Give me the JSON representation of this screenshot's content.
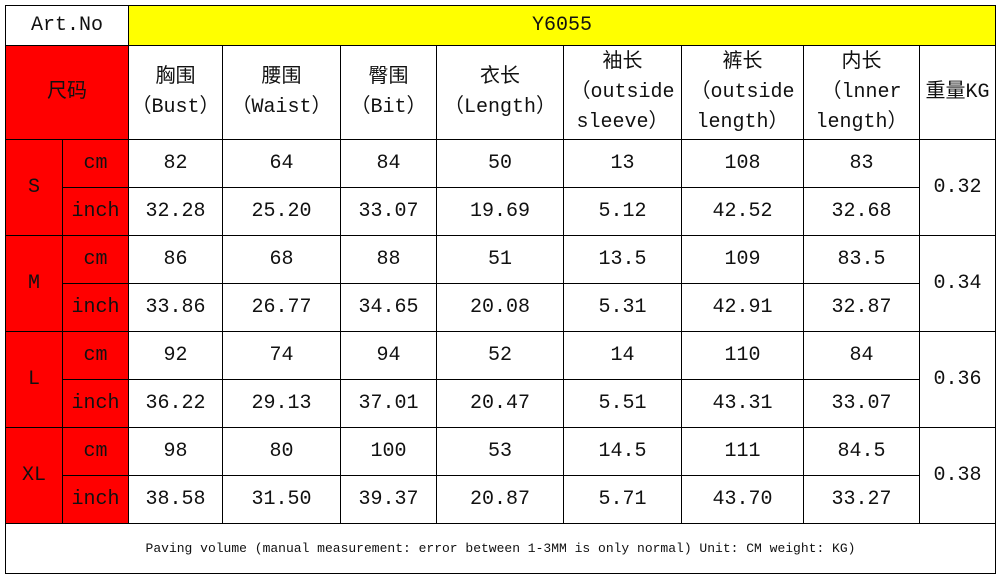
{
  "art_no": {
    "label": "Art.No",
    "value": "Y6055"
  },
  "header": {
    "size_label": "尺码",
    "columns": [
      [
        "胸围",
        "（Bust）"
      ],
      [
        "腰围",
        "（Waist）"
      ],
      [
        "臀围",
        "（Bit）"
      ],
      [
        "衣长",
        "（Length）"
      ],
      [
        "袖长",
        "（outside",
        "sleeve）"
      ],
      [
        "裤长",
        "（outside",
        "length）"
      ],
      [
        "内长",
        "（lnner",
        "length）"
      ]
    ],
    "weight_label": "重量KG"
  },
  "sizes": [
    {
      "size": "S",
      "weight": "0.32",
      "rows": [
        {
          "unit": "cm",
          "values": [
            "82",
            "64",
            "84",
            "50",
            "13",
            "108",
            "83"
          ]
        },
        {
          "unit": "inch",
          "values": [
            "32.28",
            "25.20",
            "33.07",
            "19.69",
            "5.12",
            "42.52",
            "32.68"
          ]
        }
      ]
    },
    {
      "size": "M",
      "weight": "0.34",
      "rows": [
        {
          "unit": "cm",
          "values": [
            "86",
            "68",
            "88",
            "51",
            "13.5",
            "109",
            "83.5"
          ]
        },
        {
          "unit": "inch",
          "values": [
            "33.86",
            "26.77",
            "34.65",
            "20.08",
            "5.31",
            "42.91",
            "32.87"
          ]
        }
      ]
    },
    {
      "size": "L",
      "weight": "0.36",
      "rows": [
        {
          "unit": "cm",
          "values": [
            "92",
            "74",
            "94",
            "52",
            "14",
            "110",
            "84"
          ]
        },
        {
          "unit": "inch",
          "values": [
            "36.22",
            "29.13",
            "37.01",
            "20.47",
            "5.51",
            "43.31",
            "33.07"
          ]
        }
      ]
    },
    {
      "size": "XL",
      "weight": "0.38",
      "rows": [
        {
          "unit": "cm",
          "values": [
            "98",
            "80",
            "100",
            "53",
            "14.5",
            "111",
            "84.5"
          ]
        },
        {
          "unit": "inch",
          "values": [
            "38.58",
            "31.50",
            "39.37",
            "20.87",
            "5.71",
            "43.70",
            "33.27"
          ]
        }
      ]
    }
  ],
  "footer": "Paving volume (manual measurement: error between 1-3MM is only normal) Unit: CM weight: KG)"
}
